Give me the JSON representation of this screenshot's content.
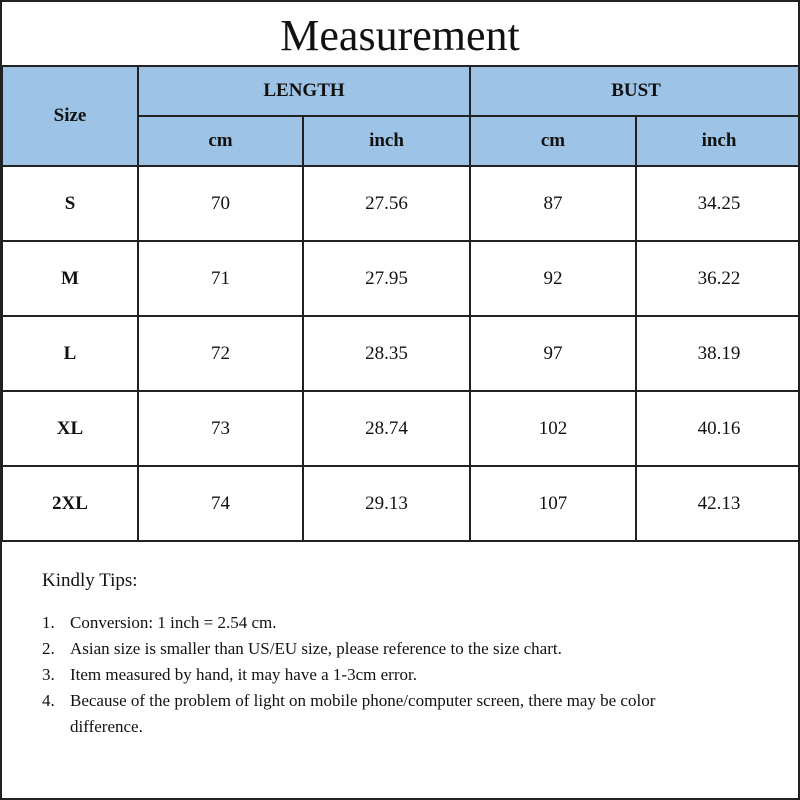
{
  "title": "Measurement",
  "colors": {
    "header_bg": "#9DC3E6"
  },
  "headers": {
    "size": "Size",
    "length": "LENGTH",
    "bust": "BUST",
    "cm": "cm",
    "inch": "inch"
  },
  "rows": [
    {
      "size": "S",
      "length_cm": "70",
      "length_inch": "27.56",
      "bust_cm": "87",
      "bust_inch": "34.25"
    },
    {
      "size": "M",
      "length_cm": "71",
      "length_inch": "27.95",
      "bust_cm": "92",
      "bust_inch": "36.22"
    },
    {
      "size": "L",
      "length_cm": "72",
      "length_inch": "28.35",
      "bust_cm": "97",
      "bust_inch": "38.19"
    },
    {
      "size": "XL",
      "length_cm": "73",
      "length_inch": "28.74",
      "bust_cm": "102",
      "bust_inch": "40.16"
    },
    {
      "size": "2XL",
      "length_cm": "74",
      "length_inch": "29.13",
      "bust_cm": "107",
      "bust_inch": "42.13"
    }
  ],
  "tips": {
    "heading": "Kindly Tips:",
    "items": [
      {
        "num": "1.",
        "text": "Conversion: 1 inch = 2.54 cm."
      },
      {
        "num": "2.",
        "text": "Asian size is smaller than US/EU size, please reference to the size chart."
      },
      {
        "num": "3.",
        "text": "Item measured by hand, it may have a 1-3cm error."
      },
      {
        "num": "4.",
        "text": "Because of the problem of light on mobile phone/computer screen, there may be color difference."
      }
    ]
  }
}
